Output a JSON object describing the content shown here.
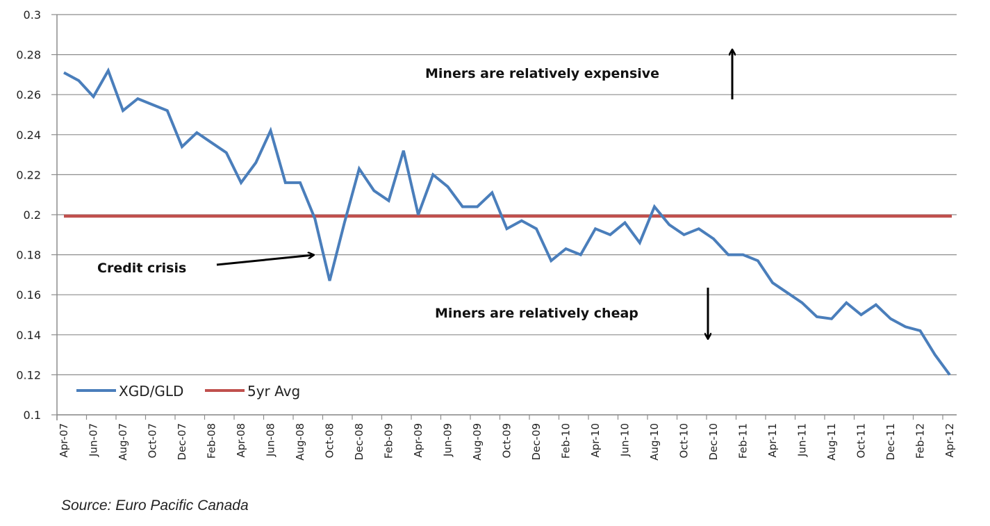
{
  "chart_data": {
    "type": "line",
    "title": "",
    "xlabel": "",
    "ylabel": "",
    "ylim": [
      0.1,
      0.3
    ],
    "yticks": [
      "0.1",
      "0.12",
      "0.14",
      "0.16",
      "0.18",
      "0.2",
      "0.22",
      "0.24",
      "0.26",
      "0.28",
      "0.3"
    ],
    "ytick_values": [
      0.1,
      0.12,
      0.14,
      0.16,
      0.18,
      0.2,
      0.22,
      0.24,
      0.26,
      0.28,
      0.3
    ],
    "xticks": [
      "Apr-07",
      "Jun-07",
      "Aug-07",
      "Oct-07",
      "Dec-07",
      "Feb-08",
      "Apr-08",
      "Jun-08",
      "Aug-08",
      "Oct-08",
      "Dec-08",
      "Feb-09",
      "Apr-09",
      "Jun-09",
      "Aug-09",
      "Oct-09",
      "Dec-09",
      "Feb-10",
      "Apr-10",
      "Jun-10",
      "Aug-10",
      "Oct-10",
      "Dec-10",
      "Feb-11",
      "Apr-11",
      "Jun-11",
      "Aug-11",
      "Oct-11",
      "Dec-11",
      "Feb-12",
      "Apr-12"
    ],
    "grid": true,
    "legend_position": "bottom-left",
    "series": [
      {
        "name": "XGD/GLD",
        "color": "#4a7ebb",
        "values": [
          0.271,
          0.267,
          0.259,
          0.272,
          0.252,
          0.258,
          0.255,
          0.252,
          0.234,
          0.241,
          0.236,
          0.231,
          0.216,
          0.226,
          0.242,
          0.216,
          0.216,
          0.198,
          0.167,
          0.196,
          0.223,
          0.212,
          0.207,
          0.232,
          0.2,
          0.22,
          0.214,
          0.204,
          0.204,
          0.211,
          0.193,
          0.197,
          0.193,
          0.177,
          0.183,
          0.18,
          0.193,
          0.19,
          0.196,
          0.186,
          0.204,
          0.195,
          0.19,
          0.193,
          0.188,
          0.18,
          0.18,
          0.177,
          0.166,
          0.161,
          0.156,
          0.149,
          0.148,
          0.156,
          0.15,
          0.155,
          0.148,
          0.144,
          0.142,
          0.13,
          0.12
        ]
      },
      {
        "name": "5yr Avg",
        "color": "#c0504d",
        "values": [
          0.1993
        ]
      }
    ],
    "annotations": [
      {
        "text": "Miners are relatively expensive",
        "arrow": "up"
      },
      {
        "text": "Credit crisis",
        "arrow": "right"
      },
      {
        "text": "Miners are relatively cheap",
        "arrow": "down"
      }
    ]
  },
  "source": "Source: Euro Pacific Canada"
}
